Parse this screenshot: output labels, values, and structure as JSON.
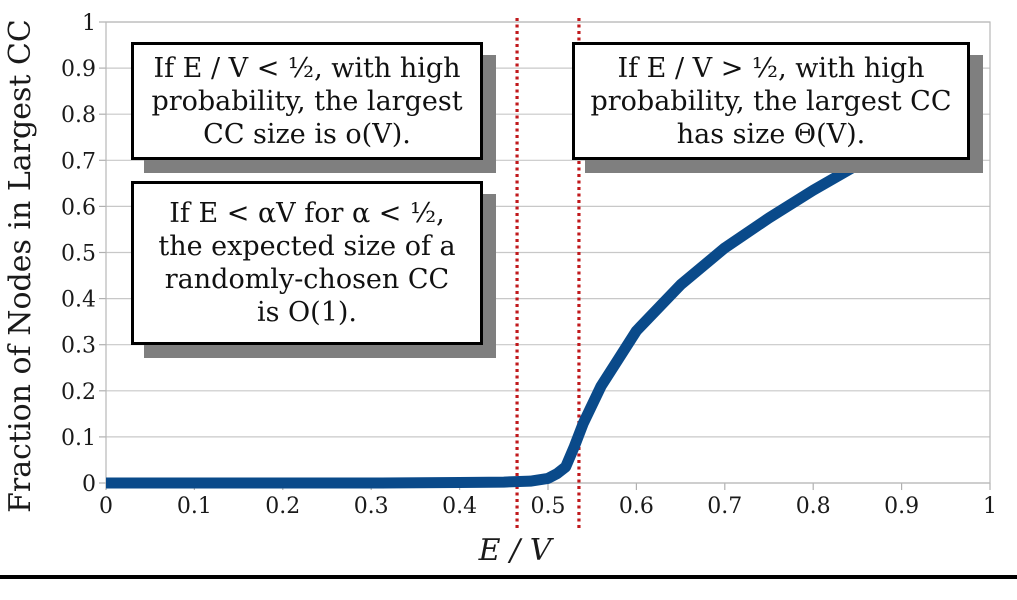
{
  "chart_data": {
    "type": "line",
    "xlabel": "E / V",
    "ylabel": "Fraction of Nodes in Largest CC",
    "xlim": [
      0,
      1
    ],
    "ylim": [
      0,
      1
    ],
    "x_ticks": [
      "0",
      "0.1",
      "0.2",
      "0.3",
      "0.4",
      "0.5",
      "0.6",
      "0.7",
      "0.8",
      "0.9",
      "1"
    ],
    "y_ticks": [
      "0",
      "0.1",
      "0.2",
      "0.3",
      "0.4",
      "0.5",
      "0.6",
      "0.7",
      "0.8",
      "0.9",
      "1"
    ],
    "grid": true,
    "series": [
      {
        "color": "#0a4a8a",
        "x": [
          0,
          0.1,
          0.2,
          0.3,
          0.4,
          0.45,
          0.48,
          0.5,
          0.51,
          0.52,
          0.53,
          0.54,
          0.56,
          0.58,
          0.6,
          0.65,
          0.7,
          0.75,
          0.8,
          0.85
        ],
        "y": [
          0,
          0,
          0,
          0,
          0.001,
          0.002,
          0.004,
          0.01,
          0.02,
          0.035,
          0.08,
          0.13,
          0.21,
          0.27,
          0.33,
          0.43,
          0.51,
          0.575,
          0.635,
          0.69
        ]
      }
    ],
    "vlines": [
      {
        "x": 0.465,
        "color": "#c0191c",
        "style": "dotted"
      },
      {
        "x": 0.535,
        "color": "#c0191c",
        "style": "dotted"
      }
    ],
    "annotations": [
      "If E / V < ½, with high\nprobability, the largest\nCC size is o(V).",
      "If E / V > ½, with high\nprobability, the largest CC\nhas size Θ(V).",
      "If E < αV for α < ½,\nthe expected size of a\nrandomly-chosen CC\nis O(1)."
    ]
  }
}
